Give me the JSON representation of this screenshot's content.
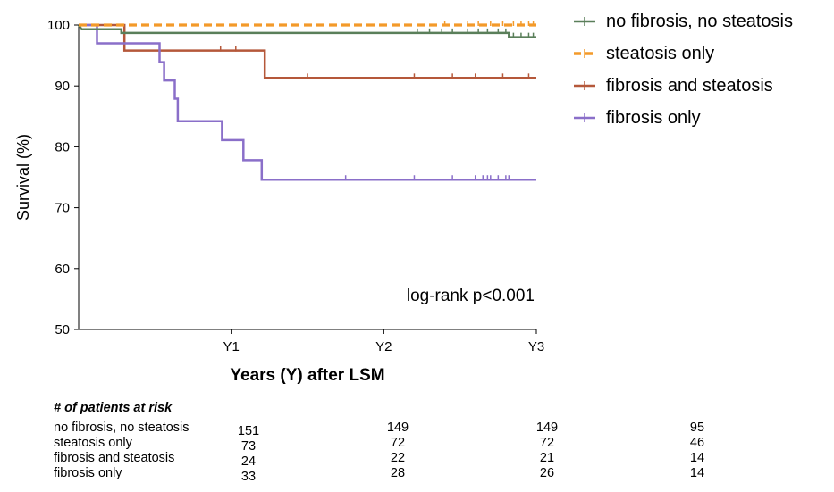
{
  "chart_data": {
    "type": "line",
    "subtype": "kaplan-meier",
    "xlabel": "Years (Y) after  LSM",
    "ylabel": "Survival (%)",
    "xlim": [
      0,
      3
    ],
    "ylim": [
      50,
      100
    ],
    "xticks": [
      1,
      2,
      3
    ],
    "xtick_labels": [
      "Y1",
      "Y2",
      "Y3"
    ],
    "yticks": [
      50,
      60,
      70,
      80,
      90,
      100
    ],
    "ytick_labels": [
      "50",
      "60",
      "70",
      "80",
      "90",
      "100"
    ],
    "grid": false,
    "legend_position": "top-right, outside plot",
    "annotation": "log-rank p<0.001",
    "series": [
      {
        "name": "no fibrosis, no steatosis",
        "color": "#5a7f5a",
        "dash": false,
        "steps": [
          [
            0,
            100
          ],
          [
            0.02,
            99.3
          ],
          [
            0.28,
            99.3
          ],
          [
            0.28,
            98.7
          ],
          [
            2.82,
            98.7
          ],
          [
            2.82,
            98.0
          ],
          [
            3.0,
            98.0
          ]
        ],
        "censor_x": [
          2.22,
          2.3,
          2.38,
          2.45,
          2.55,
          2.62,
          2.68,
          2.75,
          2.8,
          2.85,
          2.9,
          2.95,
          2.98
        ]
      },
      {
        "name": "steatosis only",
        "color": "#f39a2a",
        "dash": true,
        "steps": [
          [
            0,
            100
          ],
          [
            3.0,
            100
          ]
        ],
        "censor_x": [
          2.4,
          2.55,
          2.62,
          2.7,
          2.78,
          2.85,
          2.9,
          2.95,
          2.98
        ]
      },
      {
        "name": "fibrosis and steatosis",
        "color": "#b5583a",
        "dash": false,
        "steps": [
          [
            0,
            100
          ],
          [
            0.3,
            100
          ],
          [
            0.3,
            95.8
          ],
          [
            1.22,
            95.8
          ],
          [
            1.22,
            91.3
          ],
          [
            3.0,
            91.3
          ]
        ],
        "censor_x": [
          0.93,
          1.03,
          1.5,
          2.2,
          2.45,
          2.6,
          2.78,
          2.95
        ]
      },
      {
        "name": "fibrosis only",
        "color": "#8a6fc9",
        "dash": false,
        "steps": [
          [
            0,
            100
          ],
          [
            0.12,
            100
          ],
          [
            0.12,
            97.0
          ],
          [
            0.53,
            97.0
          ],
          [
            0.53,
            93.9
          ],
          [
            0.56,
            93.9
          ],
          [
            0.56,
            90.9
          ],
          [
            0.63,
            90.9
          ],
          [
            0.63,
            87.9
          ],
          [
            0.65,
            87.9
          ],
          [
            0.65,
            84.2
          ],
          [
            0.94,
            84.2
          ],
          [
            0.94,
            81.1
          ],
          [
            1.08,
            81.1
          ],
          [
            1.08,
            77.8
          ],
          [
            1.2,
            77.8
          ],
          [
            1.2,
            74.6
          ],
          [
            3.0,
            74.6
          ]
        ],
        "censor_x": [
          1.75,
          2.2,
          2.45,
          2.6,
          2.65,
          2.68,
          2.7,
          2.75,
          2.8,
          2.82
        ]
      }
    ]
  },
  "risk_table": {
    "heading": "# of patients at risk",
    "rows": [
      {
        "label": "no fibrosis, no steatosis",
        "values": [
          "151",
          "149",
          "149",
          "95"
        ]
      },
      {
        "label": "steatosis only",
        "values": [
          "73",
          "72",
          "72",
          "46"
        ]
      },
      {
        "label": "fibrosis and steatosis",
        "values": [
          "24",
          "22",
          "21",
          "14"
        ]
      },
      {
        "label": "fibrosis only",
        "values": [
          "33",
          "28",
          "26",
          "14"
        ]
      }
    ]
  }
}
